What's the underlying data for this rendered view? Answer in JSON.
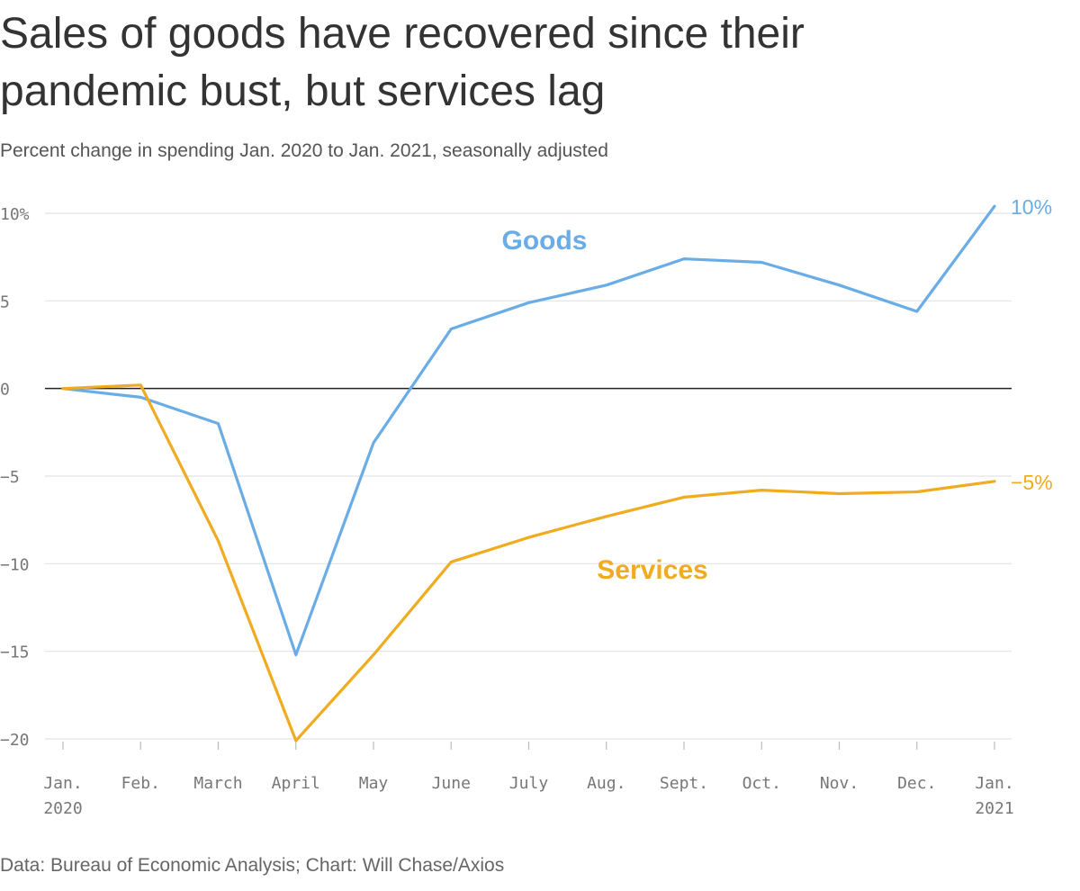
{
  "title": "Sales of goods have recovered since their pandemic bust, but services lag",
  "subtitle": "Percent change in spending Jan. 2020 to Jan. 2021, seasonally adjusted",
  "source": "Data: Bureau of Economic Analysis; Chart: Will Chase/Axios",
  "chart_data": {
    "type": "line",
    "x": [
      [
        "Jan.",
        "2020"
      ],
      [
        "Feb."
      ],
      [
        "March"
      ],
      [
        "April"
      ],
      [
        "May"
      ],
      [
        "June"
      ],
      [
        "July"
      ],
      [
        "Aug."
      ],
      [
        "Sept."
      ],
      [
        "Oct."
      ],
      [
        "Nov."
      ],
      [
        "Dec."
      ],
      [
        "Jan.",
        "2021"
      ]
    ],
    "series": [
      {
        "name": "Goods",
        "color": "#6aace6",
        "values": [
          0,
          -0.5,
          -2.0,
          -15.2,
          -3.1,
          3.4,
          4.9,
          5.9,
          7.4,
          7.2,
          5.9,
          4.4,
          10.4
        ],
        "end_label": "10%"
      },
      {
        "name": "Services",
        "color": "#f0ab1f",
        "values": [
          0,
          0.2,
          -8.7,
          -20.1,
          -15.2,
          -9.9,
          -8.5,
          -7.3,
          -6.2,
          -5.8,
          -6.0,
          -5.9,
          -5.3
        ],
        "end_label": "−5%"
      }
    ],
    "yticks": [
      10,
      5,
      0,
      -5,
      -10,
      -15,
      -20
    ],
    "ytick_labels": [
      "10%",
      "5",
      "0",
      "−5",
      "−10",
      "−15",
      "−20"
    ],
    "ylim": [
      -20,
      10
    ],
    "grid": true,
    "legend": "direct labels"
  }
}
